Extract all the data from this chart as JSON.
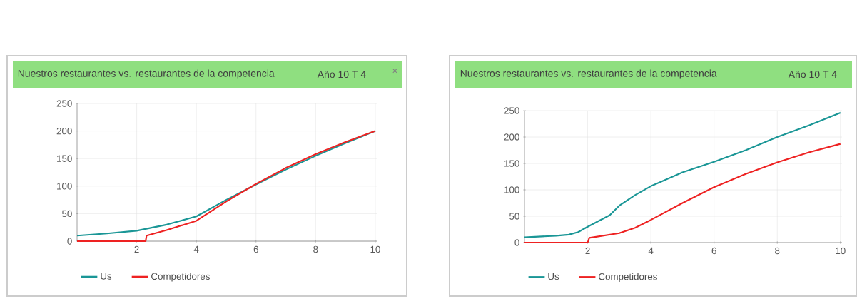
{
  "chart_data": [
    {
      "type": "line",
      "title": "Nuestros restaurantes vs. restaurantes de la competencia",
      "subtitle": "Año 10 T 4",
      "annotations": [
        "×"
      ],
      "xlim": [
        0,
        10.05
      ],
      "ylim": [
        0,
        250
      ],
      "xticks": [
        2,
        4,
        6,
        8,
        10
      ],
      "yticks": [
        0,
        50,
        100,
        150,
        200,
        250
      ],
      "grid": true,
      "legend": "bottom",
      "marker": "none",
      "line_style": "solid",
      "series": [
        {
          "name": "Us",
          "color": "#1a9696",
          "x": [
            0,
            1,
            2,
            3,
            4,
            5,
            6,
            7,
            8,
            9,
            10
          ],
          "values": [
            10,
            14,
            19,
            30,
            45,
            75,
            103,
            130,
            155,
            178,
            200
          ]
        },
        {
          "name": "Competidores",
          "color": "#ee2222",
          "x": [
            0,
            2.3,
            2.33,
            3,
            4,
            5,
            6,
            7,
            8,
            9,
            10
          ],
          "values": [
            0,
            0,
            10,
            20,
            37,
            72,
            104,
            133,
            158,
            180,
            200
          ]
        }
      ]
    },
    {
      "type": "line",
      "title": "Nuestros restaurantes vs. restaurantes de la competencia",
      "subtitle": "Año 10 T 4",
      "xlim": [
        0,
        10.05
      ],
      "ylim": [
        0,
        250
      ],
      "xticks": [
        2,
        4,
        6,
        8,
        10
      ],
      "yticks": [
        0,
        50,
        100,
        150,
        200,
        250
      ],
      "grid": true,
      "legend": "bottom",
      "marker": "none",
      "line_style": "solid",
      "series": [
        {
          "name": "Us",
          "color": "#1a9696",
          "x": [
            0,
            1,
            1.4,
            1.7,
            2,
            2.7,
            3,
            3.5,
            4,
            5,
            6,
            7,
            8,
            9,
            10
          ],
          "values": [
            10,
            13,
            15,
            20,
            30,
            52,
            70,
            90,
            107,
            133,
            153,
            175,
            200,
            222,
            246
          ]
        },
        {
          "name": "Competidores",
          "color": "#ee2222",
          "x": [
            0,
            2,
            2.05,
            3,
            3.5,
            4,
            5,
            6,
            7,
            8,
            9,
            10
          ],
          "values": [
            0,
            0,
            9,
            18,
            28,
            43,
            75,
            105,
            130,
            152,
            171,
            187
          ]
        }
      ]
    }
  ]
}
